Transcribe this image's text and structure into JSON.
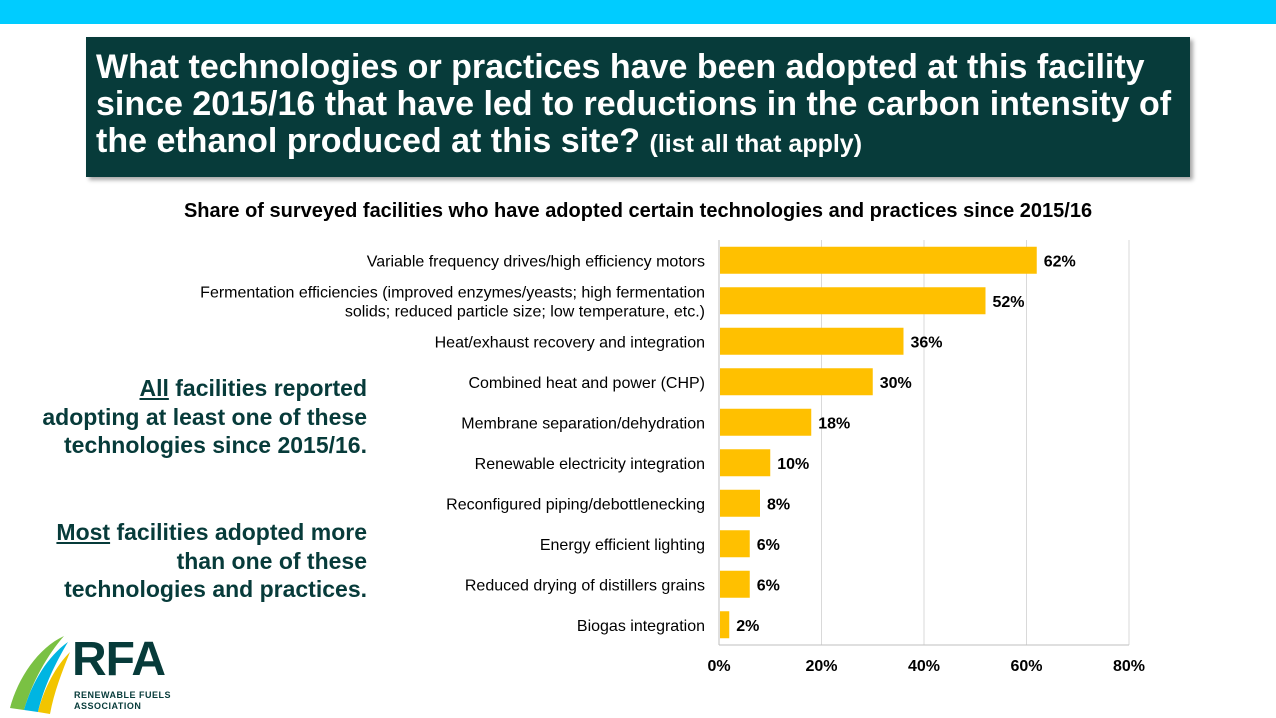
{
  "header": {
    "title_main": "What technologies or practices have been adopted at this facility since 2015/16 that have led to reductions in the carbon intensity of the ethanol produced at this site?",
    "title_sub": "(list all that apply)"
  },
  "notes": {
    "note1_em": "All",
    "note1_rest": " facilities reported adopting at least one of these technologies since 2015/16.",
    "note2_em": "Most",
    "note2_rest": " facilities adopted more than one of these technologies and practices."
  },
  "logo": {
    "name": "RFA",
    "line1": "RENEWABLE FUELS",
    "line2": "ASSOCIATION"
  },
  "colors": {
    "bar": "#ffc000",
    "title_bg": "#073b3a",
    "top_bar": "#00ccff"
  },
  "chart_data": {
    "type": "bar",
    "orientation": "horizontal",
    "title": "Share of surveyed facilities who have adopted certain technologies and practices since 2015/16",
    "categories": [
      "Variable frequency drives/high efficiency motors",
      "Fermentation efficiencies (improved enzymes/yeasts; high fermentation solids; reduced particle size; low temperature, etc.)",
      "Heat/exhaust recovery and integration",
      "Combined heat and power (CHP)",
      "Membrane separation/dehydration",
      "Renewable electricity integration",
      "Reconfigured piping/debottlenecking",
      "Energy efficient lighting",
      "Reduced drying of distillers grains",
      "Biogas integration"
    ],
    "category_lines": [
      [
        "Variable frequency drives/high efficiency motors"
      ],
      [
        "Fermentation efficiencies (improved enzymes/yeasts; high fermentation",
        "solids; reduced particle size; low temperature, etc.)"
      ],
      [
        "Heat/exhaust recovery and integration"
      ],
      [
        "Combined heat and power (CHP)"
      ],
      [
        "Membrane separation/dehydration"
      ],
      [
        "Renewable electricity integration"
      ],
      [
        "Reconfigured piping/debottlenecking"
      ],
      [
        "Energy efficient lighting"
      ],
      [
        "Reduced drying of distillers grains"
      ],
      [
        "Biogas integration"
      ]
    ],
    "values": [
      62,
      52,
      36,
      30,
      18,
      10,
      8,
      6,
      6,
      2
    ],
    "data_labels": [
      "62%",
      "52%",
      "36%",
      "30%",
      "18%",
      "10%",
      "8%",
      "6%",
      "6%",
      "2%"
    ],
    "xlim": [
      0,
      80
    ],
    "xticks": [
      0,
      20,
      40,
      60,
      80
    ],
    "xtick_labels": [
      "0%",
      "20%",
      "40%",
      "60%",
      "80%"
    ],
    "grid": true,
    "legend": "none"
  }
}
